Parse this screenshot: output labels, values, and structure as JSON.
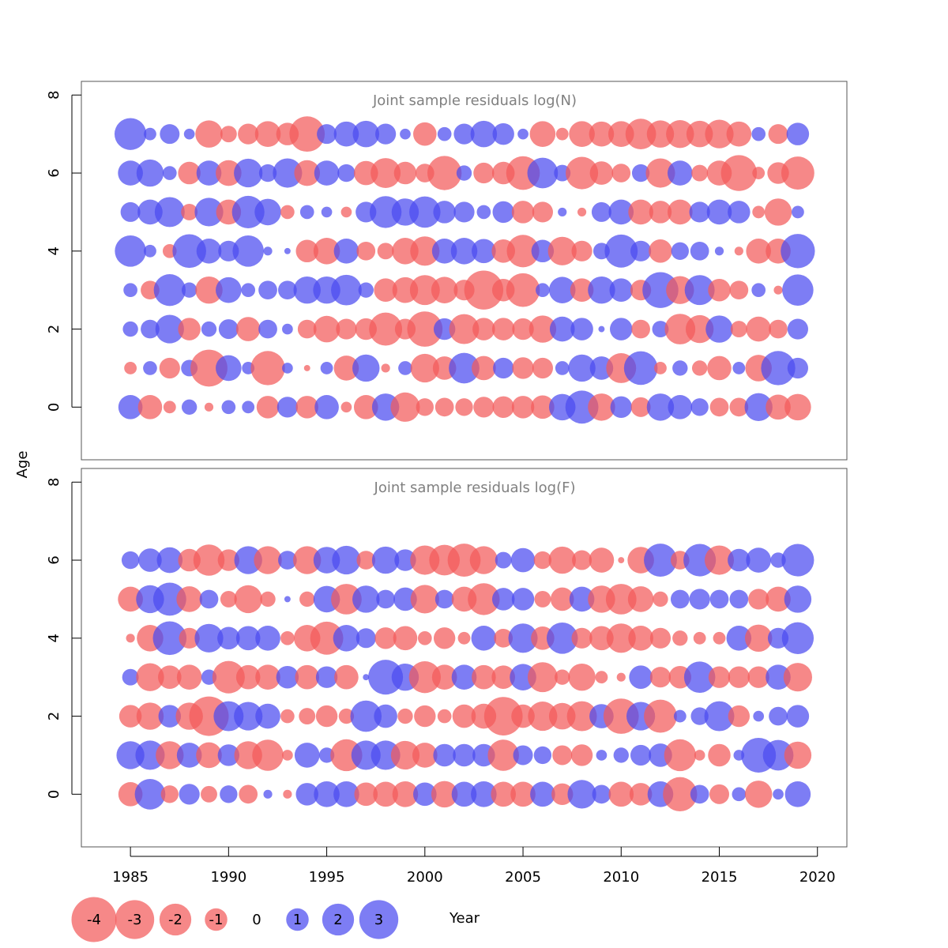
{
  "chart_data": {
    "type": "scatter",
    "subtype": "bubble",
    "xlabel": "Year",
    "ylabel": "Age",
    "xlim": [
      1982.5,
      2021.5
    ],
    "x_ticks": [
      1985,
      1990,
      1995,
      2000,
      2005,
      2010,
      2015,
      2020
    ],
    "colors": {
      "positive": "#4b4bf0",
      "negative": "#f25a5a"
    },
    "legend": {
      "placement": "bottom",
      "entries": [
        {
          "value": -4,
          "label": "-4"
        },
        {
          "value": -3,
          "label": "-3"
        },
        {
          "value": -2,
          "label": "-2"
        },
        {
          "value": -1,
          "label": "-1"
        },
        {
          "value": 0,
          "label": "0"
        },
        {
          "value": 1,
          "label": "1"
        },
        {
          "value": 2,
          "label": "2"
        },
        {
          "value": 3,
          "label": "3"
        }
      ]
    },
    "years": [
      1985,
      1986,
      1987,
      1988,
      1989,
      1990,
      1991,
      1992,
      1993,
      1994,
      1995,
      1996,
      1997,
      1998,
      1999,
      2000,
      2001,
      2002,
      2003,
      2004,
      2005,
      2006,
      2007,
      2008,
      2009,
      2010,
      2011,
      2012,
      2013,
      2014,
      2015,
      2016,
      2017,
      2018,
      2019
    ],
    "panels": [
      {
        "title": "Joint sample residuals log(N)",
        "ylim": [
          -1.35,
          8.35
        ],
        "y_ticks": [
          0,
          2,
          4,
          6,
          8
        ],
        "ages": [
          0,
          1,
          2,
          3,
          4,
          5,
          6,
          7
        ],
        "residuals": [
          [
            1.5,
            -1.5,
            -0.4,
            0.6,
            -0.2,
            0.5,
            0.4,
            -1.3,
            1.1,
            -1.3,
            1.5,
            -0.3,
            -1.5,
            1.9,
            -2.2,
            -0.8,
            -0.9,
            -0.8,
            -1.1,
            -1.2,
            -1.3,
            -1.4,
            1.8,
            2.8,
            -1.9,
            1.2,
            -1.0,
            1.9,
            1.5,
            0.8,
            -0.9,
            -0.9,
            2.0,
            -1.6,
            -1.8
          ],
          [
            -0.4,
            0.5,
            -1.1,
            0.7,
            -3.5,
            1.7,
            0.4,
            -3.0,
            0.3,
            -0.1,
            0.4,
            -1.6,
            1.9,
            -0.2,
            0.5,
            -2.1,
            -1.4,
            2.4,
            -1.5,
            1.1,
            -1.2,
            -1.1,
            0.5,
            1.9,
            1.4,
            -2.3,
            2.9,
            -0.4,
            0.6,
            -0.6,
            -1.5,
            0.4,
            -1.8,
            3.0,
            1.1
          ],
          [
            0.6,
            0.9,
            2.1,
            -1.3,
            0.6,
            1.0,
            -1.5,
            0.9,
            0.3,
            -0.9,
            -1.8,
            -1.1,
            -1.2,
            -2.8,
            -1.1,
            -3.2,
            1.2,
            -2.3,
            -1.3,
            -1.3,
            -1.2,
            -1.9,
            1.6,
            1.3,
            0.1,
            1.3,
            -0.9,
            0.7,
            -2.4,
            -2.0,
            1.9,
            -0.7,
            -1.6,
            -0.9,
            1.1
          ],
          [
            0.5,
            -0.9,
            2.6,
            0.6,
            -1.9,
            1.7,
            0.5,
            0.9,
            0.9,
            1.9,
            1.9,
            2.4,
            0.6,
            -1.4,
            -1.7,
            -2.3,
            -1.8,
            -1.1,
            -3.9,
            -1.3,
            -2.9,
            0.5,
            1.8,
            -1.4,
            1.9,
            1.4,
            -1.1,
            3.3,
            -2.0,
            2.3,
            -1.3,
            -0.9,
            0.5,
            -0.2,
            2.5
          ],
          [
            2.5,
            0.4,
            -0.5,
            2.9,
            1.6,
            1.1,
            2.5,
            0.2,
            0.1,
            -1.3,
            -1.8,
            1.6,
            -0.9,
            -0.7,
            -1.8,
            -2.2,
            1.6,
            1.8,
            1.5,
            -1.4,
            -2.7,
            1.3,
            -2.1,
            -1.1,
            0.7,
            2.8,
            1.1,
            -1.4,
            0.8,
            0.9,
            0.2,
            -0.2,
            -1.6,
            -1.6,
            3.0
          ],
          [
            1.0,
            1.6,
            2.3,
            -0.7,
            2.1,
            -1.6,
            2.7,
            1.8,
            -0.5,
            0.5,
            0.3,
            -0.3,
            1.1,
            2.6,
            1.9,
            2.5,
            1.3,
            1.1,
            0.5,
            1.2,
            -1.3,
            -1.1,
            0.2,
            -0.2,
            1.0,
            1.6,
            -1.6,
            -1.3,
            -1.6,
            1.1,
            1.6,
            1.3,
            -0.4,
            -1.9,
            0.4
          ],
          [
            1.6,
            1.9,
            0.5,
            -1.3,
            1.6,
            -1.7,
            2.1,
            0.8,
            2.2,
            -1.7,
            1.6,
            0.8,
            -1.5,
            -2.3,
            -1.3,
            -0.9,
            -3.0,
            0.6,
            -1.1,
            -1.3,
            -2.9,
            2.4,
            0.7,
            -2.7,
            -1.4,
            -0.9,
            0.8,
            -2.2,
            1.6,
            -0.7,
            -1.6,
            -3.3,
            -0.4,
            -1.2,
            -2.8
          ],
          [
            2.6,
            0.4,
            1.0,
            0.3,
            -1.9,
            -0.7,
            -1.1,
            -1.7,
            -1.3,
            -3.2,
            1.0,
            1.6,
            1.8,
            1.1,
            0.3,
            -1.4,
            0.5,
            1.1,
            1.8,
            1.2,
            0.3,
            -1.7,
            -0.4,
            -1.7,
            -1.6,
            -1.7,
            -2.4,
            -1.9,
            -2.0,
            -1.8,
            -2.1,
            -1.6,
            0.5,
            -1.0,
            1.3
          ]
        ]
      },
      {
        "title": "Joint sample residuals log(F)",
        "ylim": [
          -1.35,
          8.35
        ],
        "y_ticks": [
          0,
          2,
          4,
          6,
          8
        ],
        "ages": [
          0,
          1,
          2,
          3,
          4,
          5,
          6
        ],
        "residuals": [
          [
            -1.5,
            2.4,
            -0.8,
            1.1,
            -0.7,
            0.8,
            -0.9,
            0.2,
            -0.2,
            1.3,
            1.7,
            1.7,
            -1.4,
            -1.6,
            -1.7,
            1.4,
            -1.8,
            1.6,
            1.7,
            -1.6,
            -1.6,
            1.6,
            -1.2,
            2.1,
            0.9,
            -1.6,
            -1.3,
            1.7,
            -3.0,
            0.9,
            -1.0,
            0.5,
            -1.9,
            0.3,
            1.7
          ],
          [
            2.0,
            2.2,
            -2.0,
            1.6,
            -1.7,
            1.2,
            -2.0,
            -2.5,
            -0.3,
            1.6,
            0.6,
            -2.6,
            2.2,
            2.2,
            -2.1,
            -1.6,
            1.3,
            1.3,
            1.3,
            -2.5,
            1.0,
            0.8,
            -1.0,
            -1.2,
            0.3,
            0.6,
            1.1,
            1.4,
            -2.6,
            -0.3,
            -1.3,
            0.3,
            3.1,
            2.4,
            -1.9
          ],
          [
            -1.3,
            -1.9,
            1.3,
            -1.9,
            -4.0,
            2.3,
            2.1,
            1.6,
            -0.5,
            -0.7,
            -1.2,
            -0.6,
            2.5,
            1.4,
            -0.6,
            -1.2,
            -0.5,
            -1.4,
            -1.6,
            -3.8,
            -1.4,
            -2.2,
            -1.8,
            -2.3,
            1.5,
            -3.2,
            2.1,
            -2.8,
            0.4,
            0.8,
            2.3,
            -1.2,
            0.3,
            0.9,
            1.3
          ],
          [
            0.7,
            -2.0,
            -1.4,
            -1.6,
            0.6,
            -2.7,
            -1.5,
            -1.6,
            1.3,
            -1.5,
            1.2,
            -1.5,
            0.1,
            3.1,
            1.9,
            -2.6,
            -1.6,
            1.6,
            -1.5,
            -1.4,
            1.8,
            -2.3,
            -0.6,
            -1.9,
            -0.4,
            -0.2,
            1.4,
            -1.1,
            -1.3,
            2.5,
            -1.2,
            -1.2,
            -1.2,
            1.6,
            -2.1
          ],
          [
            -0.2,
            -1.8,
            2.9,
            -1.1,
            2.1,
            1.3,
            1.5,
            1.6,
            -0.5,
            -1.8,
            -2.8,
            1.8,
            1.0,
            -1.2,
            -1.5,
            -0.5,
            -1.2,
            -0.4,
            1.6,
            -0.9,
            2.2,
            -1.4,
            2.5,
            -1.1,
            -1.5,
            -2.2,
            -1.6,
            -1.1,
            -0.6,
            -0.4,
            -0.4,
            1.6,
            -1.9,
            1.1,
            2.6
          ],
          [
            -1.6,
            2.0,
            2.8,
            -1.7,
            0.9,
            -0.7,
            -2.0,
            -0.6,
            0.1,
            -0.6,
            1.8,
            -2.4,
            1.9,
            0.9,
            1.4,
            -2.1,
            0.9,
            -1.6,
            -2.6,
            1.3,
            1.3,
            -0.7,
            -1.4,
            1.6,
            -1.9,
            -2.4,
            -1.7,
            -0.6,
            0.9,
            1.1,
            0.9,
            0.9,
            -1.1,
            -1.6,
            1.9
          ],
          [
            0.8,
            1.4,
            1.7,
            -1.3,
            -2.5,
            -1.2,
            2.0,
            -2.0,
            0.9,
            -2.0,
            1.8,
            2.1,
            -0.9,
            1.9,
            1.2,
            -2.2,
            -2.4,
            -2.8,
            -2.0,
            0.7,
            1.5,
            -0.8,
            -1.9,
            -1.0,
            -1.6,
            -0.1,
            -1.8,
            2.8,
            -0.9,
            2.7,
            -2.2,
            1.3,
            1.6,
            0.6,
            2.7
          ]
        ]
      }
    ]
  }
}
